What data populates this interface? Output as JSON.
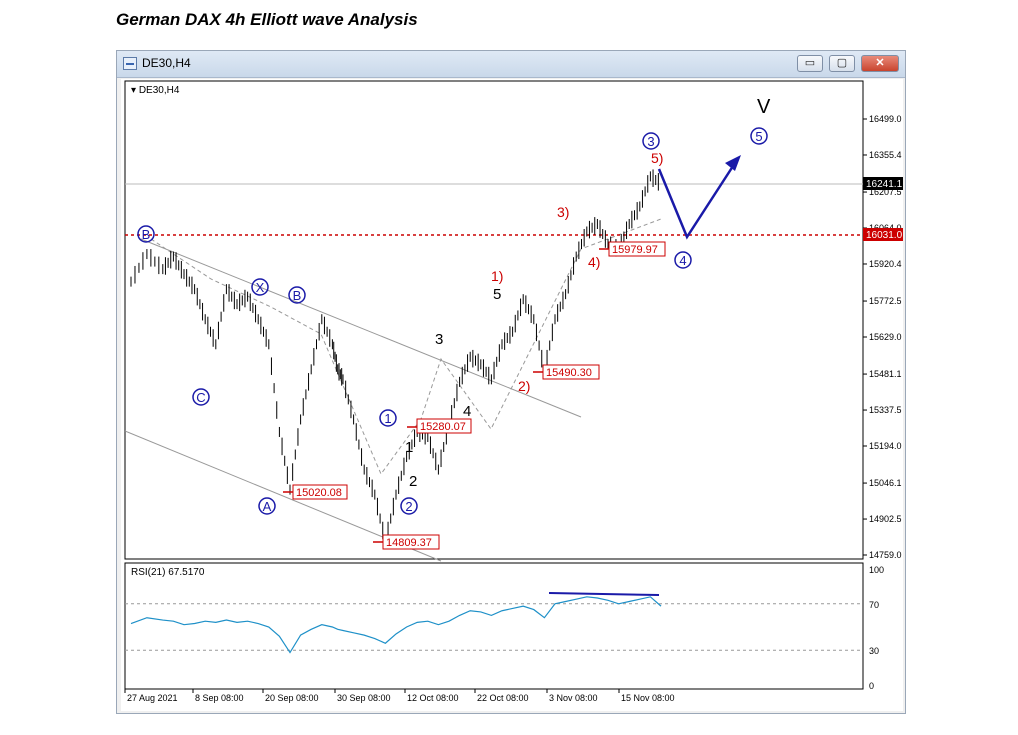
{
  "page": {
    "title": "German DAX 4h Elliott wave Analysis"
  },
  "window": {
    "title": "DE30,H4",
    "min_label": "▭",
    "restore_label": "▢",
    "close_label": "✕",
    "icon": "chart-window-icon"
  },
  "colors": {
    "bar": "#000000",
    "red": "#cc0000",
    "blue": "#1a1aa8",
    "rsi": "#1e90c8",
    "channel": "#888888"
  },
  "chart_data": {
    "type": "line",
    "symbol_label": "DE30,H4",
    "price_axis": {
      "min": 14759.0,
      "max": 16499.0,
      "ticks": [
        "16499.0",
        "16355.4",
        "16207.5",
        "16064.0",
        "15920.4",
        "15772.5",
        "15629.0",
        "15481.1",
        "15337.5",
        "15194.0",
        "15046.1",
        "14902.5",
        "14759.0"
      ]
    },
    "current_price_label": "16241.1",
    "level_label": "16031.0",
    "x_labels": [
      "27 Aug 2021",
      "8 Sep 08:00",
      "20 Sep 08:00",
      "30 Sep 08:00",
      "12 Oct 08:00",
      "22 Oct 08:00",
      "3 Nov 08:00",
      "15 Nov 08:00"
    ],
    "series": [
      {
        "x": [
          0,
          6,
          12,
          16,
          20,
          24,
          28,
          32,
          36,
          40,
          44,
          48,
          52,
          56,
          60,
          64,
          68,
          72,
          76,
          78,
          80,
          84,
          88,
          92,
          96,
          100,
          104,
          108,
          112,
          116,
          120,
          124,
          128,
          132,
          136,
          140,
          144,
          148,
          152,
          156,
          160,
          164,
          168,
          172,
          176,
          180,
          184,
          188,
          192,
          196,
          200
        ],
        "values": [
          15850,
          15960,
          15900,
          15950,
          15880,
          15820,
          15700,
          15600,
          15820,
          15760,
          15790,
          15700,
          15600,
          15250,
          15020,
          15300,
          15500,
          15700,
          15600,
          15500,
          15460,
          15300,
          15100,
          15000,
          14809,
          15000,
          15150,
          15250,
          15230,
          15100,
          15280,
          15450,
          15550,
          15520,
          15460,
          15600,
          15650,
          15780,
          15700,
          15490,
          15700,
          15800,
          15950,
          16050,
          16080,
          16000,
          15980,
          16080,
          16150,
          16270,
          16241
        ]
      }
    ],
    "price_boxes": [
      "15020.08",
      "14809.37",
      "15280.07",
      "15490.30",
      "15979.97"
    ],
    "wave_labels": {
      "circled_blue": [
        "B",
        "C",
        "X",
        "B",
        "A",
        "1",
        "2",
        "3",
        "4",
        "5"
      ],
      "red": [
        "1)",
        "2)",
        "3)",
        "4)",
        "5)"
      ],
      "black": [
        "1",
        "2",
        "3",
        "4",
        "5",
        "V"
      ]
    },
    "rsi": {
      "label": "RSI(21) 67.5170",
      "axis_ticks": [
        "100",
        "70",
        "30",
        "0"
      ],
      "values": [
        53,
        58,
        56,
        55,
        52,
        53,
        55,
        54,
        56,
        54,
        55,
        53,
        50,
        42,
        28,
        43,
        48,
        52,
        50,
        48,
        47,
        45,
        43,
        40,
        36,
        44,
        50,
        54,
        55,
        52,
        55,
        60,
        64,
        63,
        60,
        64,
        66,
        68,
        65,
        58,
        70,
        72,
        74,
        76,
        75,
        73,
        70,
        72,
        74,
        76,
        68
      ]
    }
  }
}
